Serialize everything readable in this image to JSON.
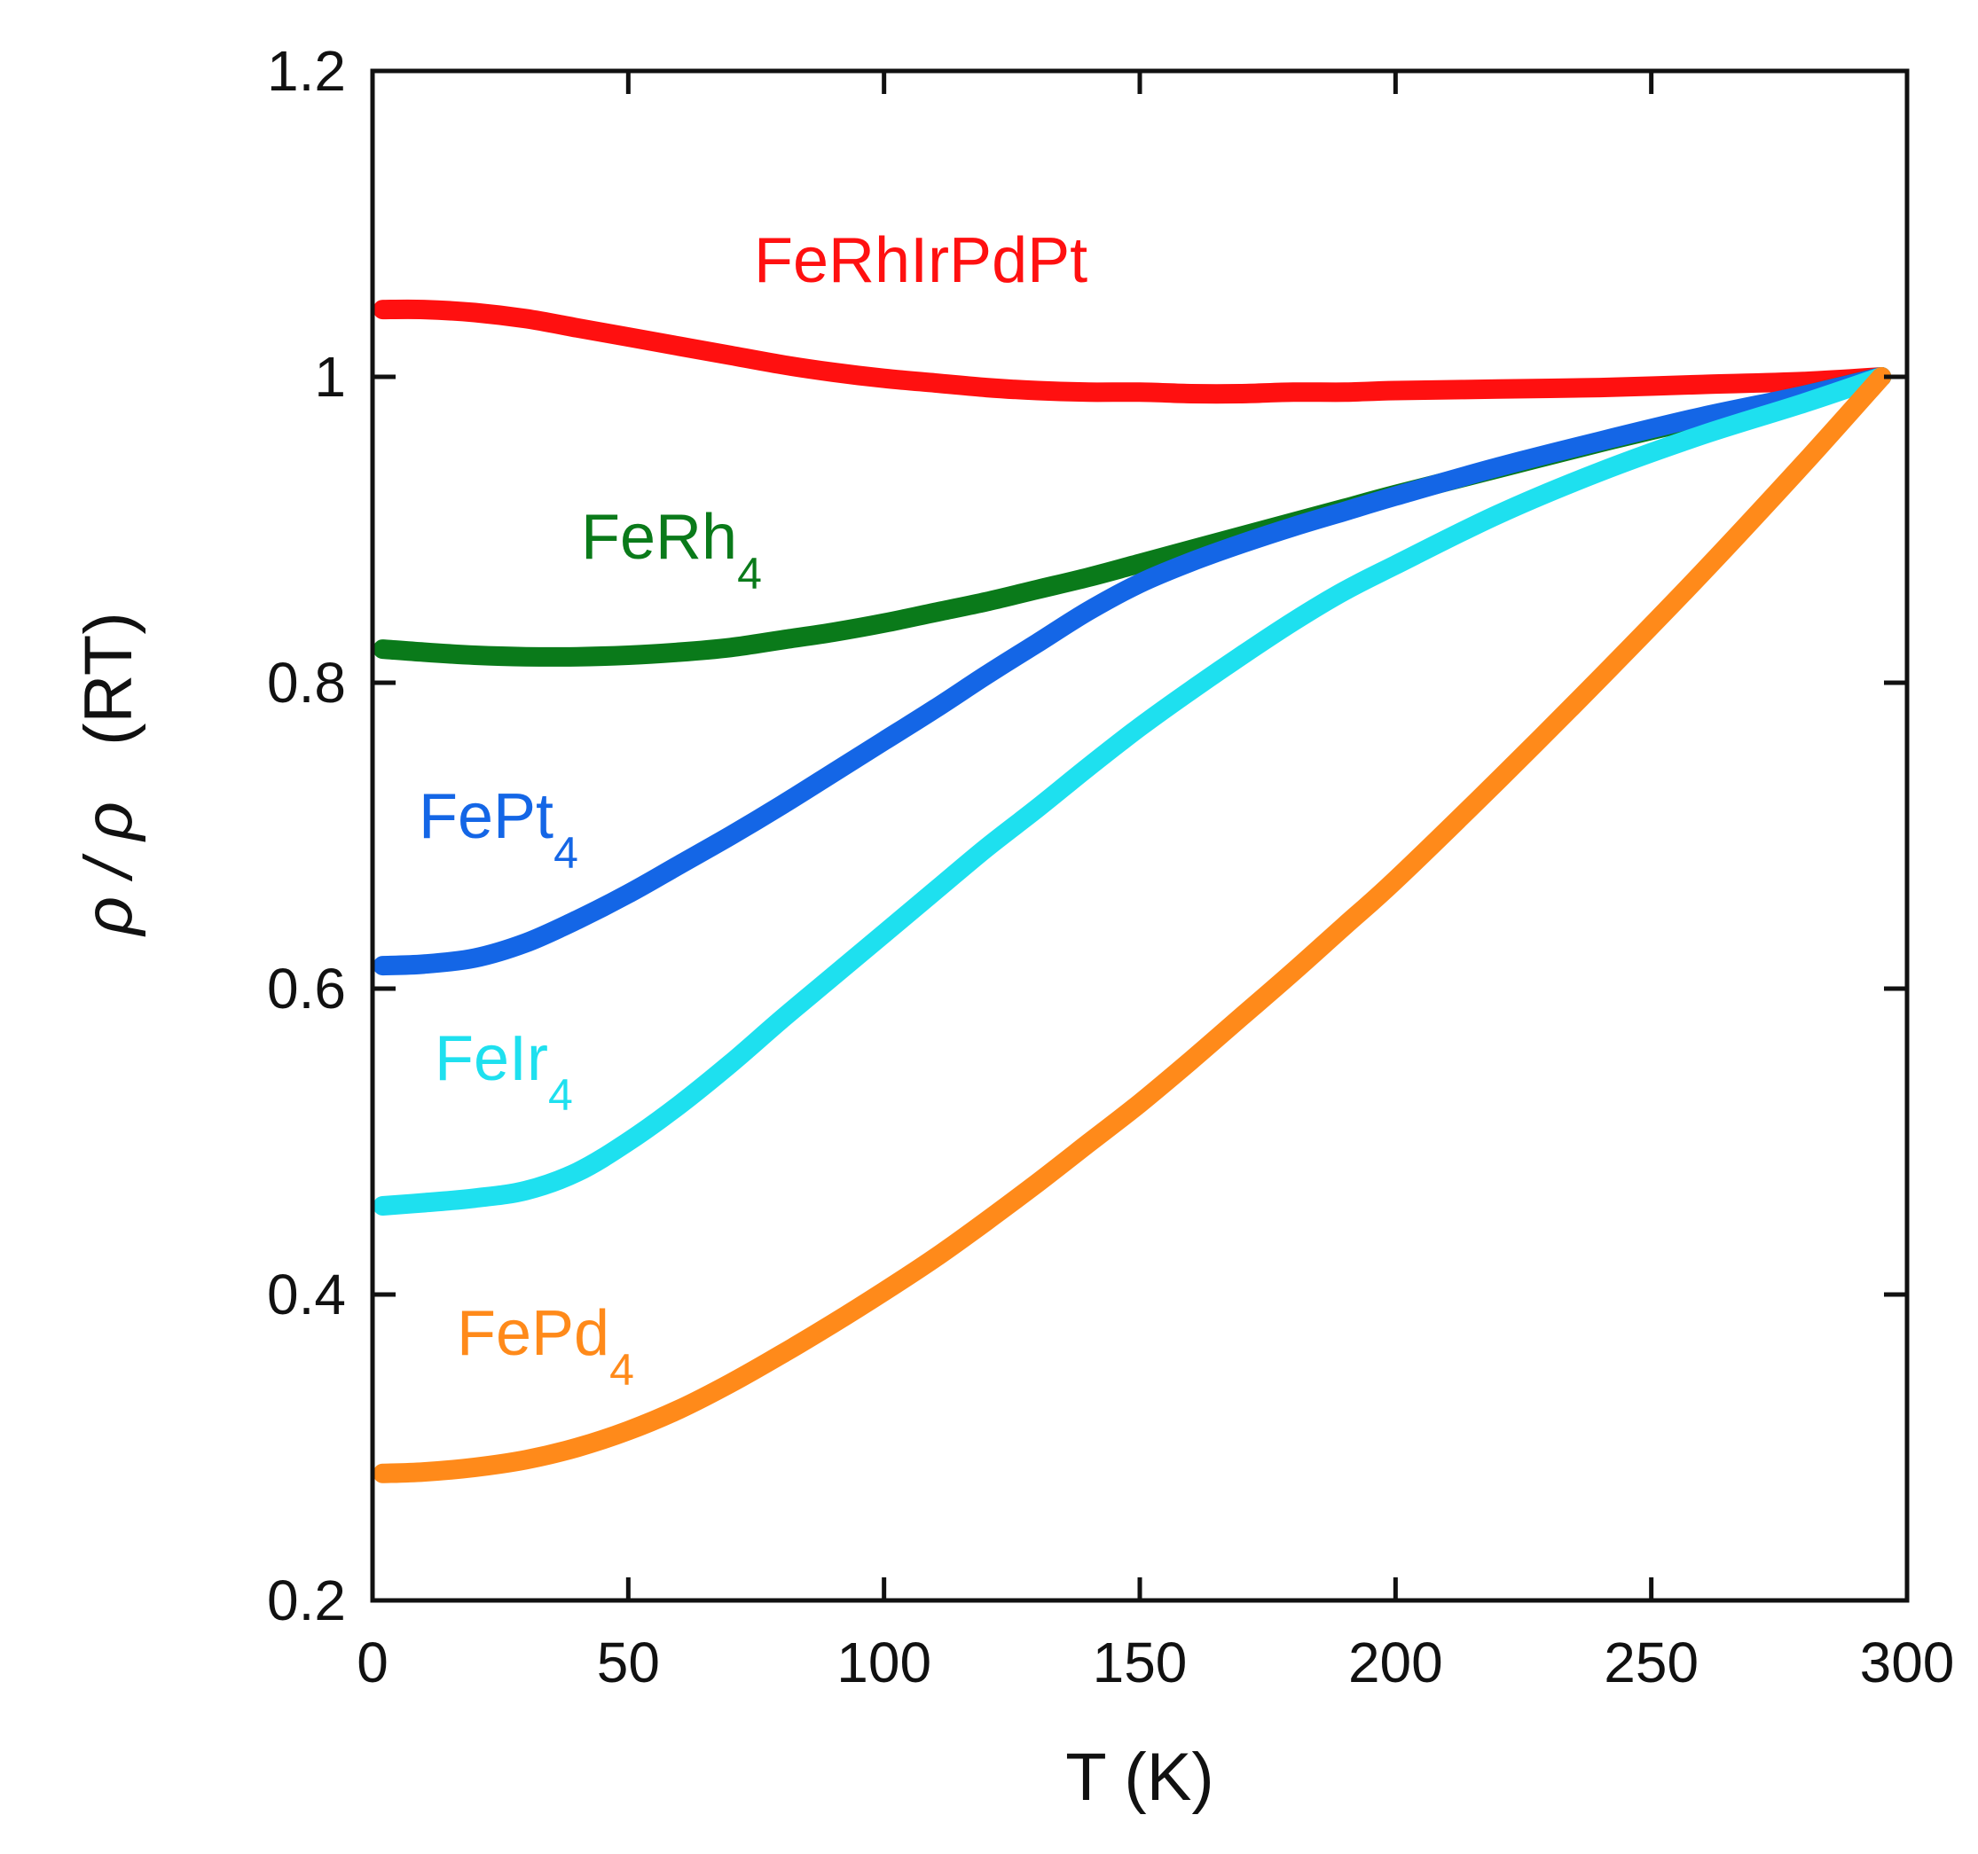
{
  "chart_data": {
    "type": "line",
    "title": "",
    "xlabel": "T (K)",
    "ylabel_symbol": "ρ / ρ",
    "ylabel_suffix": "(RT)",
    "xlim": [
      0,
      300
    ],
    "ylim": [
      0.2,
      1.2
    ],
    "xticks": [
      0,
      50,
      100,
      150,
      200,
      250,
      300
    ],
    "yticks": [
      0.2,
      0.4,
      0.6,
      0.8,
      1,
      1.2
    ],
    "xtick_labels": [
      "0",
      "50",
      "100",
      "150",
      "200",
      "250",
      "300"
    ],
    "ytick_labels": [
      "0.2",
      "0.4",
      "0.6",
      "0.8",
      "1",
      "1.2"
    ],
    "grid": false,
    "series": [
      {
        "name": "FeRhIrPdPt",
        "base": "FeRhIrPdPt",
        "sub": "",
        "color": "#ff1010",
        "x": [
          2,
          10,
          20,
          30,
          40,
          50,
          60,
          70,
          80,
          90,
          100,
          110,
          120,
          130,
          140,
          150,
          160,
          170,
          180,
          190,
          200,
          220,
          240,
          260,
          280,
          295
        ],
        "y": [
          1.044,
          1.044,
          1.042,
          1.038,
          1.032,
          1.026,
          1.02,
          1.014,
          1.008,
          1.003,
          0.999,
          0.996,
          0.993,
          0.991,
          0.99,
          0.99,
          0.989,
          0.989,
          0.99,
          0.99,
          0.991,
          0.992,
          0.993,
          0.995,
          0.997,
          1.0
        ]
      },
      {
        "name": "FeRh4",
        "base": "FeRh",
        "sub": "4",
        "color": "#0a7a1a",
        "x": [
          2,
          10,
          20,
          30,
          40,
          50,
          60,
          70,
          80,
          90,
          100,
          110,
          120,
          130,
          140,
          150,
          160,
          170,
          180,
          190,
          200,
          220,
          240,
          260,
          280,
          295
        ],
        "y": [
          0.822,
          0.82,
          0.818,
          0.817,
          0.817,
          0.818,
          0.82,
          0.823,
          0.828,
          0.833,
          0.839,
          0.846,
          0.853,
          0.861,
          0.869,
          0.878,
          0.887,
          0.896,
          0.905,
          0.914,
          0.923,
          0.94,
          0.957,
          0.973,
          0.988,
          1.0
        ]
      },
      {
        "name": "FePt4",
        "base": "FePt",
        "sub": "4",
        "color": "#1466e6",
        "x": [
          2,
          10,
          20,
          30,
          40,
          50,
          60,
          70,
          80,
          90,
          100,
          110,
          120,
          130,
          140,
          150,
          160,
          170,
          180,
          190,
          200,
          220,
          240,
          260,
          280,
          295
        ],
        "y": [
          0.615,
          0.616,
          0.62,
          0.63,
          0.645,
          0.662,
          0.681,
          0.7,
          0.72,
          0.741,
          0.762,
          0.783,
          0.805,
          0.826,
          0.847,
          0.865,
          0.879,
          0.891,
          0.902,
          0.912,
          0.922,
          0.941,
          0.958,
          0.974,
          0.988,
          1.0
        ]
      },
      {
        "name": "FeIr4",
        "base": "FeIr",
        "sub": "4",
        "color": "#1ee0ef",
        "x": [
          2,
          10,
          20,
          30,
          40,
          50,
          60,
          70,
          80,
          90,
          100,
          110,
          120,
          130,
          140,
          150,
          160,
          170,
          180,
          190,
          200,
          220,
          240,
          260,
          280,
          295
        ],
        "y": [
          0.458,
          0.46,
          0.463,
          0.468,
          0.48,
          0.5,
          0.524,
          0.551,
          0.58,
          0.608,
          0.636,
          0.664,
          0.692,
          0.718,
          0.745,
          0.771,
          0.795,
          0.818,
          0.84,
          0.86,
          0.877,
          0.91,
          0.938,
          0.962,
          0.983,
          1.0
        ]
      },
      {
        "name": "FePd4",
        "base": "FePd",
        "sub": "4",
        "color": "#ff8a1a",
        "x": [
          2,
          10,
          20,
          30,
          40,
          50,
          60,
          70,
          80,
          90,
          100,
          110,
          120,
          130,
          140,
          150,
          160,
          170,
          180,
          190,
          200,
          220,
          240,
          260,
          280,
          295
        ],
        "y": [
          0.283,
          0.284,
          0.287,
          0.292,
          0.3,
          0.311,
          0.325,
          0.342,
          0.361,
          0.381,
          0.402,
          0.424,
          0.448,
          0.473,
          0.499,
          0.525,
          0.553,
          0.582,
          0.611,
          0.641,
          0.671,
          0.736,
          0.803,
          0.872,
          0.944,
          1.0
        ]
      }
    ]
  }
}
